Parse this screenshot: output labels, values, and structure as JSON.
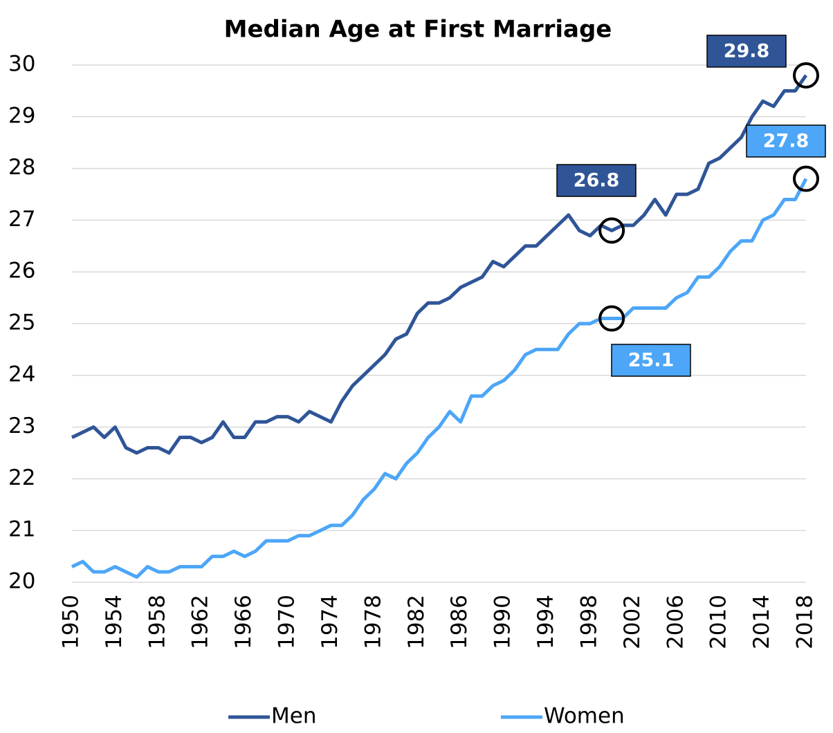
{
  "chart_data": {
    "type": "line",
    "title": "Median Age at First Marriage",
    "x": [
      1950,
      1951,
      1952,
      1953,
      1954,
      1955,
      1956,
      1957,
      1958,
      1959,
      1960,
      1961,
      1962,
      1963,
      1964,
      1965,
      1966,
      1967,
      1968,
      1969,
      1970,
      1971,
      1972,
      1973,
      1974,
      1975,
      1976,
      1977,
      1978,
      1979,
      1980,
      1981,
      1982,
      1983,
      1984,
      1985,
      1986,
      1987,
      1988,
      1989,
      1990,
      1991,
      1992,
      1993,
      1994,
      1995,
      1996,
      1997,
      1998,
      1999,
      2000,
      2001,
      2002,
      2003,
      2004,
      2005,
      2006,
      2007,
      2008,
      2009,
      2010,
      2011,
      2012,
      2013,
      2014,
      2015,
      2016,
      2017,
      2018
    ],
    "series": [
      {
        "name": "Men",
        "color": "#2f5597",
        "values": [
          22.8,
          22.9,
          23.0,
          22.8,
          23.0,
          22.6,
          22.5,
          22.6,
          22.6,
          22.5,
          22.8,
          22.8,
          22.7,
          22.8,
          23.1,
          22.8,
          22.8,
          23.1,
          23.1,
          23.2,
          23.2,
          23.1,
          23.3,
          23.2,
          23.1,
          23.5,
          23.8,
          24.0,
          24.2,
          24.4,
          24.7,
          24.8,
          25.2,
          25.4,
          25.4,
          25.5,
          25.7,
          25.8,
          25.9,
          26.2,
          26.1,
          26.3,
          26.5,
          26.5,
          26.7,
          26.9,
          27.1,
          26.8,
          26.7,
          26.9,
          26.8,
          26.9,
          26.9,
          27.1,
          27.4,
          27.1,
          27.5,
          27.5,
          27.6,
          28.1,
          28.2,
          28.4,
          28.6,
          29.0,
          29.3,
          29.2,
          29.5,
          29.5,
          29.8
        ]
      },
      {
        "name": "Women",
        "color": "#4da6f7",
        "values": [
          20.3,
          20.4,
          20.2,
          20.2,
          20.3,
          20.2,
          20.1,
          20.3,
          20.2,
          20.2,
          20.3,
          20.3,
          20.3,
          20.5,
          20.5,
          20.6,
          20.5,
          20.6,
          20.8,
          20.8,
          20.8,
          20.9,
          20.9,
          21.0,
          21.1,
          21.1,
          21.3,
          21.6,
          21.8,
          22.1,
          22.0,
          22.3,
          22.5,
          22.8,
          23.0,
          23.3,
          23.1,
          23.6,
          23.6,
          23.8,
          23.9,
          24.1,
          24.4,
          24.5,
          24.5,
          24.5,
          24.8,
          25.0,
          25.0,
          25.1,
          25.1,
          25.1,
          25.3,
          25.3,
          25.3,
          25.3,
          25.5,
          25.6,
          25.9,
          25.9,
          26.1,
          26.4,
          26.6,
          26.6,
          27.0,
          27.1,
          27.4,
          27.4,
          27.8
        ]
      }
    ],
    "xlim": [
      1950,
      2018
    ],
    "xticks": [
      1950,
      1954,
      1958,
      1962,
      1966,
      1970,
      1974,
      1978,
      1982,
      1986,
      1990,
      1994,
      1998,
      2002,
      2006,
      2010,
      2014,
      2018
    ],
    "ylim": [
      20,
      30
    ],
    "yticks": [
      20,
      21,
      22,
      23,
      24,
      25,
      26,
      27,
      28,
      29,
      30
    ],
    "grid": true,
    "legend": "bottom",
    "annotations": [
      {
        "text": "29.8",
        "x": 2018,
        "series": "Men"
      },
      {
        "text": "26.8",
        "x": 2000,
        "series": "Men"
      },
      {
        "text": "27.8",
        "x": 2018,
        "series": "Women"
      },
      {
        "text": "25.1",
        "x": 2000,
        "series": "Women"
      }
    ]
  }
}
